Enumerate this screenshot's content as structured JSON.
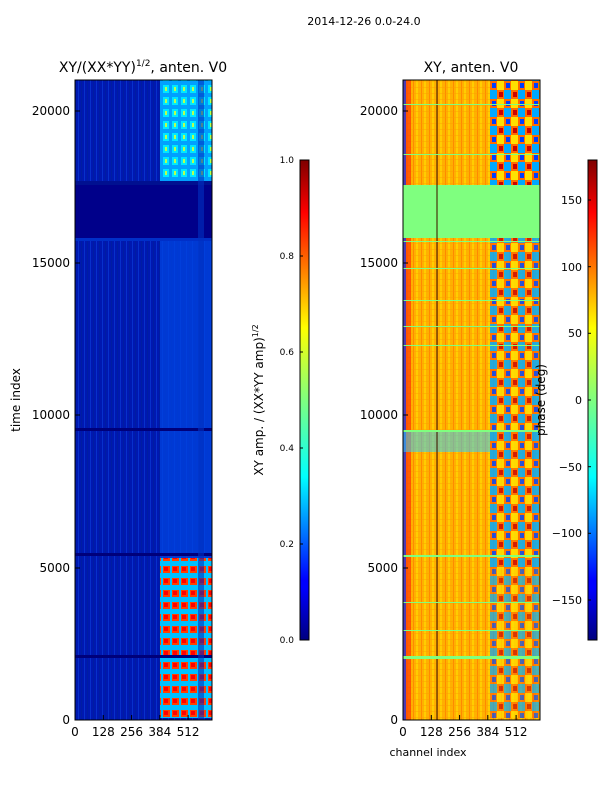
{
  "suptitle": "2014-12-26 0.0-24.0",
  "chart_data": [
    {
      "type": "heatmap",
      "title": "XY/(XX*YY)^{1/2}, anten. V0",
      "title_main": "XY/(XX*YY)",
      "title_sup": "1/2",
      "title_tail": ", anten. V0",
      "xlabel": "",
      "ylabel": "time index",
      "xlim": [
        0,
        620
      ],
      "ylim": [
        0,
        21000
      ],
      "xticks": [
        0,
        128,
        256,
        384,
        512
      ],
      "yticks": [
        0,
        5000,
        10000,
        15000,
        20000
      ],
      "colormap": "jet",
      "colorbar": {
        "label": "XY amp. / (XX*YY amp)^{1/2}",
        "label_main": "XY amp. / (XX*YY amp)",
        "label_sup": "1/2",
        "range": [
          0.0,
          1.0
        ],
        "ticks": [
          "0.0",
          "0.2",
          "0.4",
          "0.6",
          "0.8",
          "1.0"
        ]
      }
    },
    {
      "type": "heatmap",
      "title": "XY, anten. V0",
      "xlabel": "channel index",
      "ylabel": "",
      "xlim": [
        0,
        620
      ],
      "ylim": [
        0,
        21000
      ],
      "xticks": [
        0,
        128,
        256,
        384,
        512
      ],
      "yticks": [
        0,
        5000,
        10000,
        15000,
        20000
      ],
      "colormap": "jet",
      "colorbar": {
        "label": "phase (deg)",
        "range": [
          -180,
          180
        ],
        "ticks": [
          "150",
          "100",
          "50",
          "0",
          "−50",
          "−100",
          "−150"
        ],
        "tick_values": [
          150,
          100,
          50,
          0,
          -50,
          -100,
          -150
        ]
      }
    }
  ],
  "colors": {
    "jet_dark_blue": "#00007f",
    "jet_blue": "#0000ff",
    "jet_cyan": "#00ffff",
    "jet_green": "#7fff7f",
    "jet_yellow": "#ffff00",
    "jet_orange": "#ff7f00",
    "jet_red": "#ff0000",
    "jet_dark_red": "#7f0000"
  }
}
